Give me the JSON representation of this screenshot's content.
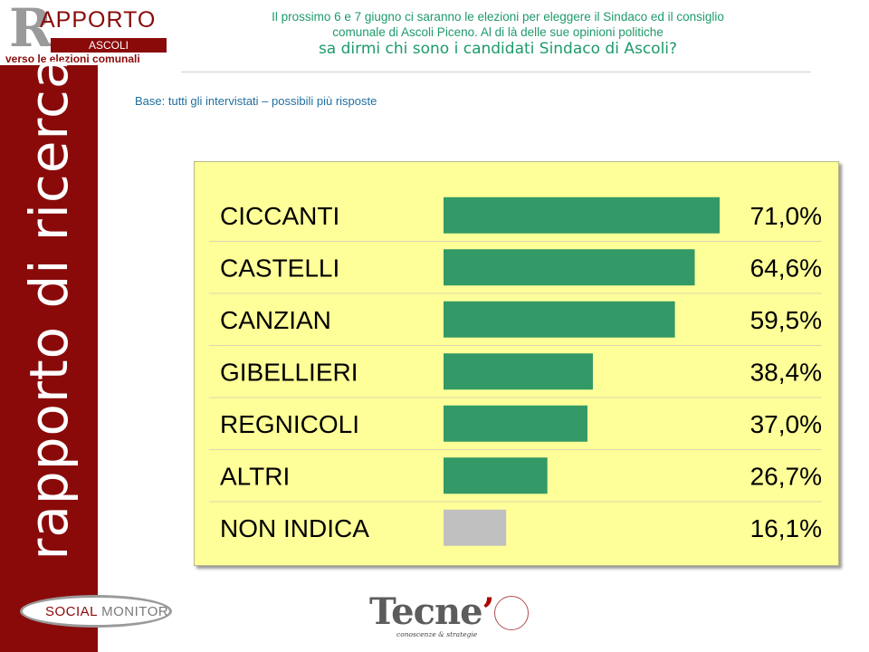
{
  "logo": {
    "letter": "R",
    "word": "APPORTO",
    "city": "ASCOLI",
    "tagline": "verso le elezioni comunali"
  },
  "sidebar": {
    "text": "rapporto di ricerca"
  },
  "header": {
    "line1": "Il prossimo 6 e 7 giugno ci saranno le elezioni per eleggere il Sindaco ed il consiglio",
    "line2": "comunale di Ascoli Piceno. Al di là delle sue opinioni politiche",
    "question": "sa dirmi chi sono i candidati Sindaco di Ascoli?"
  },
  "base_note": "Base: tutti gli intervistati – possibili più risposte",
  "colors": {
    "brand_red": "#8a0a0a",
    "bar_green": "#339966",
    "bar_gray": "#c0c0c0",
    "panel_yellow": "#ffff99",
    "header_green": "#1f9a6a"
  },
  "chart_data": {
    "type": "bar",
    "orientation": "horizontal",
    "categories": [
      "CICCANTI",
      "CASTELLI",
      "CANZIAN",
      "GIBELLIERI",
      "REGNICOLI",
      "ALTRI",
      "NON INDICA"
    ],
    "values": [
      71.0,
      64.6,
      59.5,
      38.4,
      37.0,
      26.7,
      16.1
    ],
    "value_labels": [
      "71,0%",
      "64,6%",
      "59,5%",
      "38,4%",
      "37,0%",
      "26,7%",
      "16,1%"
    ],
    "bar_colors": [
      "#339966",
      "#339966",
      "#339966",
      "#339966",
      "#339966",
      "#339966",
      "#c0c0c0"
    ],
    "xlim": [
      0,
      71
    ],
    "grid": false,
    "legend": "none"
  },
  "footer": {
    "social_word1": "SOCIAL",
    "social_word2": "MONITOR",
    "tecne_word": "Tecne",
    "tecne_apostrophe": "’",
    "tecne_tagline": "conoscenze & strategie"
  }
}
